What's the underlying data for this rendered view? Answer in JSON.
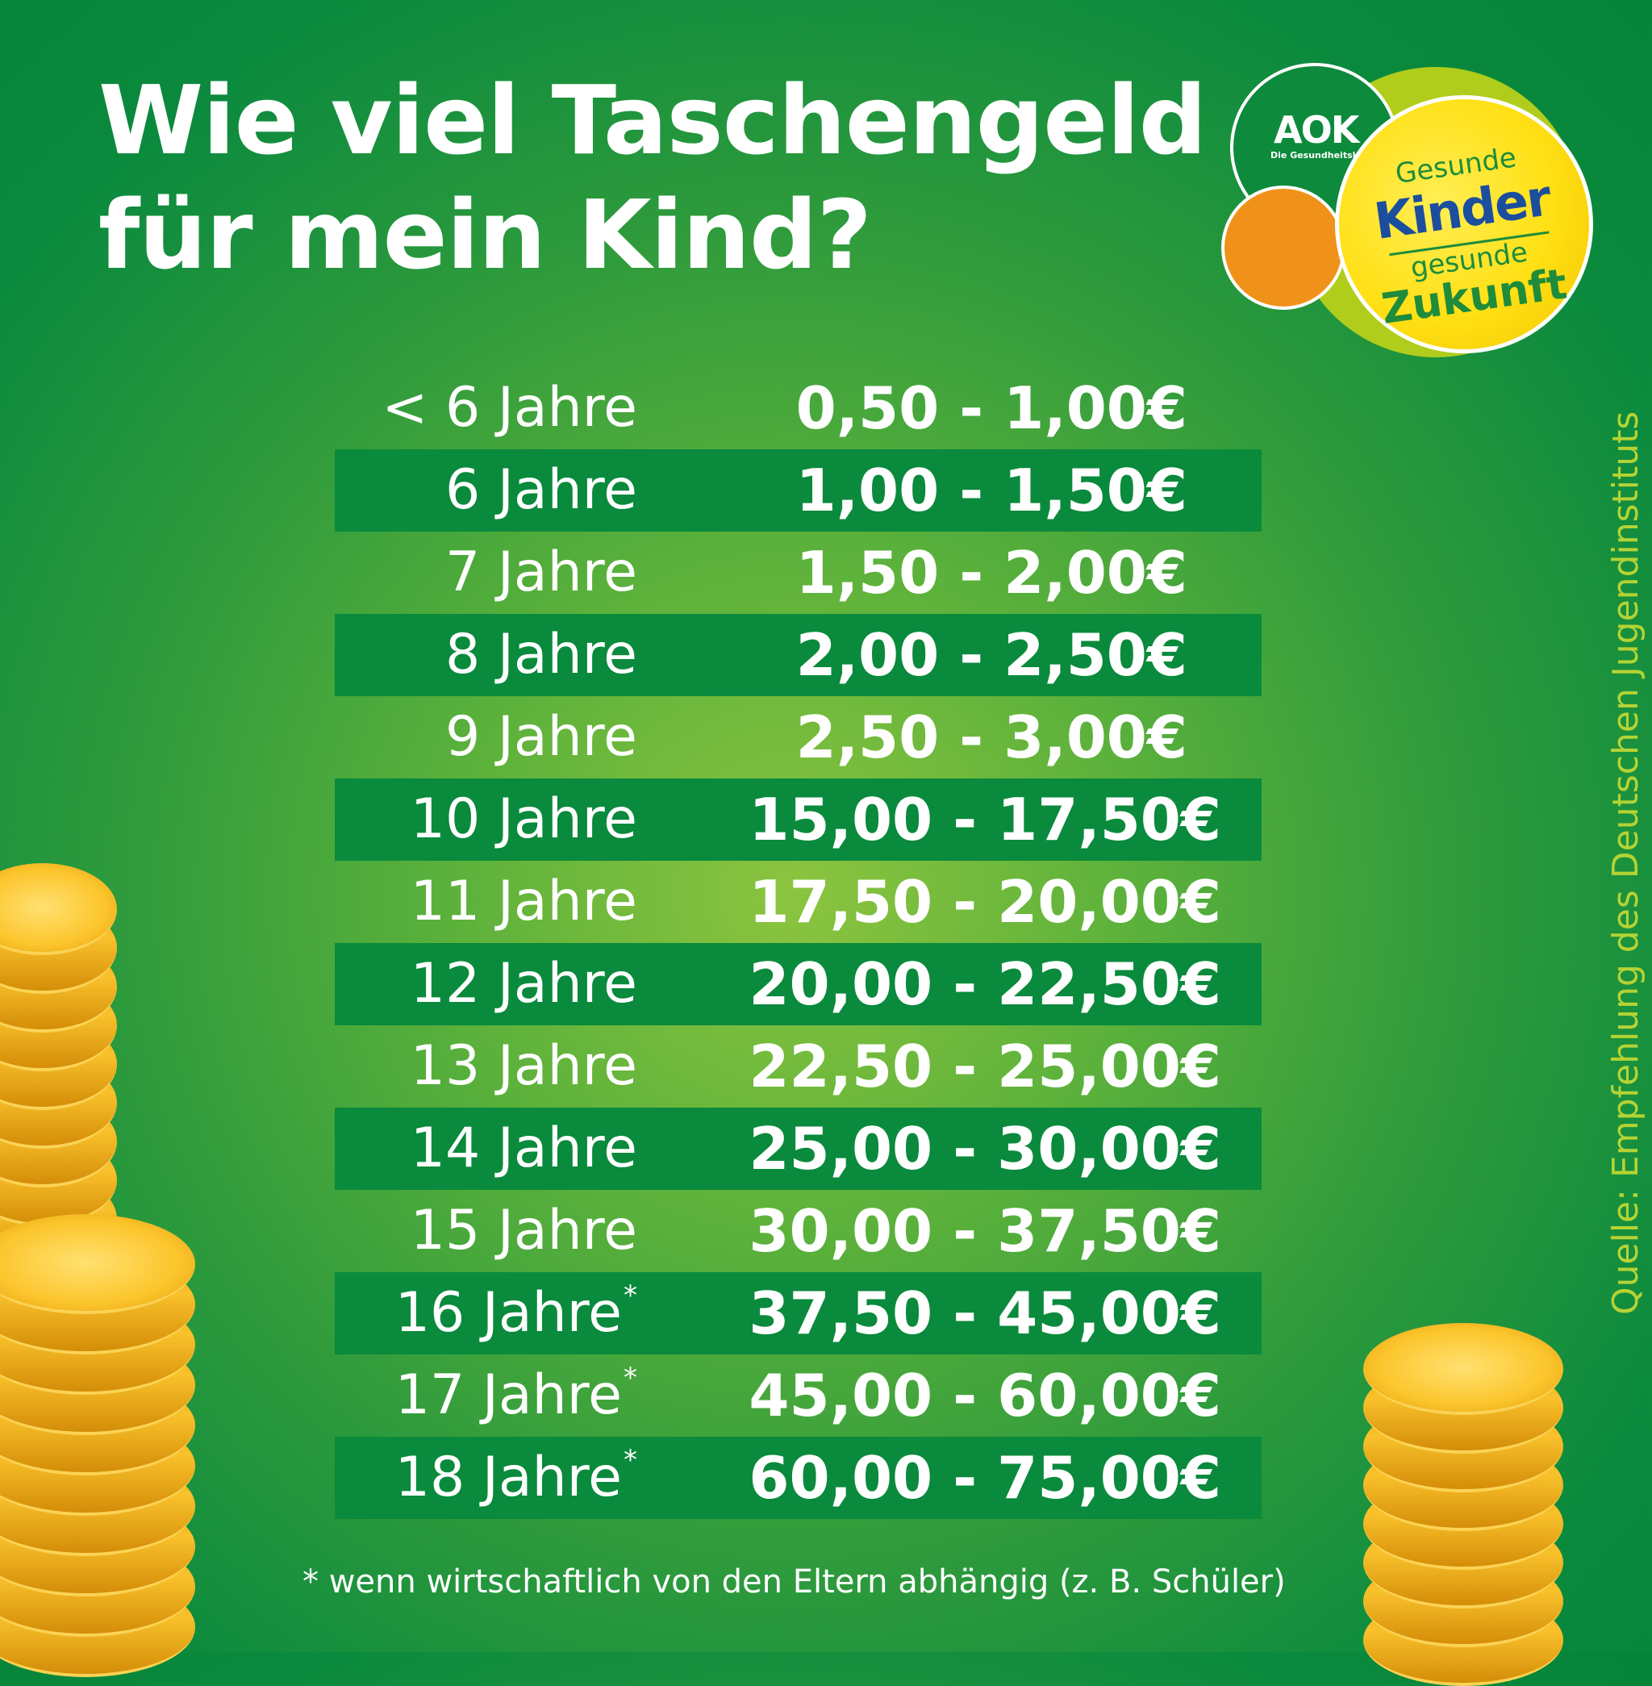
{
  "title": {
    "line1": "Wie viel Taschengeld",
    "line2": "für mein Kind?"
  },
  "logo": {
    "brand": "AOK",
    "brand_sub": "Die Gesundheitskasse.",
    "line1": "Gesunde",
    "line2": "Kinder",
    "line3": "gesunde",
    "line4": "Zukunft"
  },
  "table": {
    "rows": [
      {
        "age": "< 6 Jahre",
        "star": "",
        "amount": "0,50 - 1,00€"
      },
      {
        "age": "6 Jahre",
        "star": "",
        "amount": "1,00 - 1,50€"
      },
      {
        "age": "7 Jahre",
        "star": "",
        "amount": "1,50 - 2,00€"
      },
      {
        "age": "8 Jahre",
        "star": "",
        "amount": "2,00 - 2,50€"
      },
      {
        "age": "9 Jahre",
        "star": "",
        "amount": "2,50 - 3,00€"
      },
      {
        "age": "10 Jahre",
        "star": "",
        "amount": "15,00 - 17,50€"
      },
      {
        "age": "11 Jahre",
        "star": "",
        "amount": "17,50 - 20,00€"
      },
      {
        "age": "12 Jahre",
        "star": "",
        "amount": "20,00 - 22,50€"
      },
      {
        "age": "13 Jahre",
        "star": "",
        "amount": "22,50 - 25,00€"
      },
      {
        "age": "14 Jahre",
        "star": "",
        "amount": "25,00 - 30,00€"
      },
      {
        "age": "15 Jahre",
        "star": "",
        "amount": "30,00 - 37,50€"
      },
      {
        "age": "16 Jahre",
        "star": "*",
        "amount": "37,50 - 45,00€"
      },
      {
        "age": "17 Jahre",
        "star": "*",
        "amount": "45,00 - 60,00€"
      },
      {
        "age": "18 Jahre",
        "star": "*",
        "amount": "60,00 - 75,00€"
      }
    ]
  },
  "footnote": "* wenn wirtschaftlich von den Eltern abhängig (z. B. Schüler)",
  "source": "Quelle:  Empfehlung des Deutschen Jugendinstituts",
  "colors": {
    "background": "#0b8a3e",
    "row_band": "#0a8a3c",
    "source_text": "#b5d334",
    "coin_gold": "#f9c22c"
  }
}
